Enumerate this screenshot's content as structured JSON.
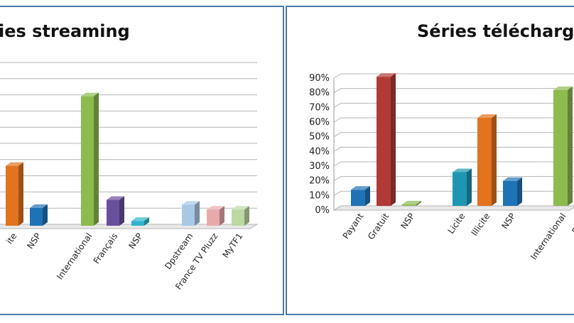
{
  "chart_data": [
    {
      "type": "bar",
      "title": "ies streaming",
      "categories": [
        "ite",
        "NSP",
        "International",
        "Français",
        "NSP",
        "Dpstream",
        "France TV Pluzz",
        "MyTF1"
      ],
      "values": [
        37,
        11,
        80,
        16,
        3,
        13,
        10,
        10
      ],
      "bar_colors": [
        "#e2731f",
        "#1e73b6",
        "#8cbb4f",
        "#6a4f9e",
        "#2fb5cd",
        "#a8c8e6",
        "#e8a9ab",
        "#bcd9a3"
      ],
      "grid": true
    },
    {
      "type": "bar",
      "title": "Séries télécharge",
      "categories": [
        "Payant",
        "Gratuit",
        "NSP",
        "Licite",
        "Illicite",
        "NSP",
        "International",
        "Franç"
      ],
      "values": [
        11,
        88,
        1,
        23,
        60,
        17,
        79,
        0
      ],
      "bar_colors": [
        "#1e73b6",
        "#b23a36",
        "#8cbb4f",
        "#1e96b3",
        "#e2731f",
        "#1e73b6",
        "#8cbb4f",
        "#8cbb4f"
      ],
      "y_ticks": [
        "90%",
        "80%",
        "70%",
        "60%",
        "50%",
        "40%",
        "30%",
        "20%",
        "10%",
        "0%"
      ],
      "ylim": [
        0,
        90
      ],
      "grid": true
    }
  ]
}
